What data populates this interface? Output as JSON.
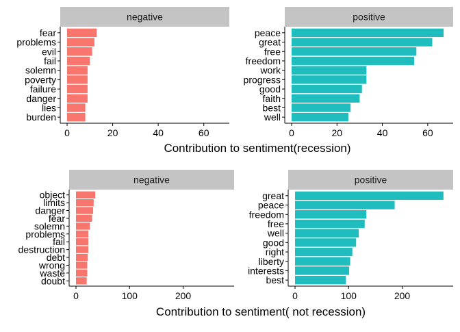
{
  "colors": {
    "negative": "#F8766D",
    "positive": "#1FBDBE",
    "strip": "#C4C4C4",
    "axis": "#000000",
    "text": "#000000"
  },
  "chart_data": [
    {
      "type": "bar",
      "orientation": "horizontal",
      "xlabel": "Contribution to sentiment(recession)",
      "grid": false,
      "legend": "none",
      "facets": [
        {
          "strip": "negative",
          "color": "negative",
          "xlim": [
            0,
            70
          ],
          "ticks": [
            0,
            20,
            40,
            60
          ],
          "categories": [
            "fear",
            "problems",
            "evil",
            "fail",
            "solemn",
            "poverty",
            "failure",
            "danger",
            "lies",
            "burden"
          ],
          "values": [
            13,
            12,
            11,
            10,
            9,
            9,
            9,
            9,
            8,
            8
          ]
        },
        {
          "strip": "positive",
          "color": "positive",
          "xlim": [
            0,
            70
          ],
          "ticks": [
            0,
            20,
            40,
            60
          ],
          "categories": [
            "peace",
            "great",
            "free",
            "freedom",
            "work",
            "progress",
            "good",
            "faith",
            "best",
            "well"
          ],
          "values": [
            67,
            62,
            55,
            54,
            33,
            33,
            31,
            30,
            26,
            25
          ]
        }
      ]
    },
    {
      "type": "bar",
      "orientation": "horizontal",
      "xlabel": "Contribution to sentiment( not recession)",
      "grid": false,
      "legend": "none",
      "facets": [
        {
          "strip": "negative",
          "color": "negative",
          "xlim": [
            0,
            290
          ],
          "ticks": [
            0,
            100,
            200
          ],
          "categories": [
            "object",
            "limits",
            "danger",
            "fear",
            "solemn",
            "problems",
            "fail",
            "destruction",
            "debt",
            "wrong",
            "waste",
            "doubt"
          ],
          "values": [
            36,
            33,
            32,
            30,
            26,
            23,
            23,
            23,
            22,
            21,
            21,
            20
          ]
        },
        {
          "strip": "positive",
          "color": "positive",
          "xlim": [
            0,
            290
          ],
          "ticks": [
            0,
            100,
            200
          ],
          "categories": [
            "great",
            "peace",
            "freedom",
            "free",
            "well",
            "good",
            "right",
            "liberty",
            "interests",
            "best"
          ],
          "values": [
            277,
            186,
            133,
            130,
            119,
            114,
            107,
            103,
            101,
            95
          ]
        }
      ]
    }
  ]
}
